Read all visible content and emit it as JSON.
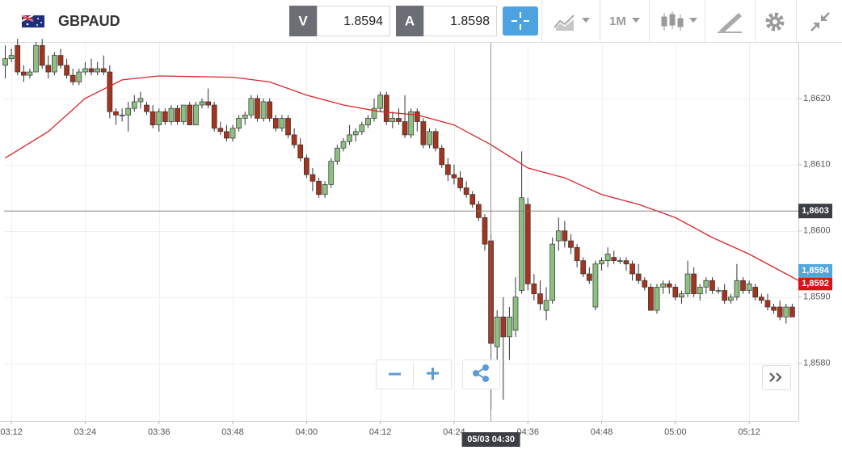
{
  "header": {
    "symbol": "GBPAUD",
    "bid_label": "V",
    "bid": 1.8594,
    "ask_label": "A",
    "ask": 1.8598,
    "timeframe": "1M"
  },
  "chart_data": {
    "type": "candlestick",
    "x": [
      191,
      192,
      193,
      194,
      195,
      196,
      197,
      198,
      199,
      200,
      201,
      202,
      203,
      204,
      205,
      206,
      207,
      208,
      209,
      210,
      211,
      212,
      213,
      214,
      215,
      216,
      217,
      218,
      219,
      220,
      221,
      222,
      223,
      224,
      225,
      226,
      227,
      228,
      229,
      230,
      231,
      232,
      233,
      234,
      235,
      236,
      237,
      238,
      239,
      240,
      241,
      242,
      243,
      244,
      245,
      246,
      247,
      248,
      249,
      250,
      251,
      252,
      253,
      254,
      255,
      256,
      257,
      258,
      259,
      260,
      261,
      262,
      263,
      264,
      265,
      266,
      267,
      268,
      269,
      270,
      271,
      272,
      273,
      274,
      275,
      276,
      277,
      278,
      279,
      280,
      281,
      282,
      283,
      284,
      285,
      286,
      287,
      288,
      289,
      290,
      291,
      292,
      293,
      294,
      295,
      296,
      297,
      298,
      299,
      300,
      301,
      302,
      303,
      304,
      305,
      306,
      307,
      308,
      309,
      310,
      311,
      312,
      313,
      314,
      315,
      316,
      317,
      318,
      319
    ],
    "open": [
      1.8625,
      1.8626,
      1.8628,
      1.8624,
      1.86235,
      1.8624,
      1.8628,
      1.8625,
      1.8624,
      1.86265,
      1.8625,
      1.86235,
      1.86225,
      1.8624,
      1.86245,
      1.8624,
      1.86245,
      1.8624,
      1.8618,
      1.86175,
      1.86175,
      1.86185,
      1.86195,
      1.8619,
      1.8618,
      1.8616,
      1.8618,
      1.86165,
      1.86185,
      1.86165,
      1.8619,
      1.8616,
      1.8619,
      1.86195,
      1.8619,
      1.86155,
      1.8615,
      1.8614,
      1.86155,
      1.8617,
      1.86175,
      1.862,
      1.8617,
      1.86195,
      1.8617,
      1.86155,
      1.8617,
      1.86145,
      1.8613,
      1.8611,
      1.86085,
      1.86075,
      1.86055,
      1.8607,
      1.86105,
      1.86125,
      1.86135,
      1.86145,
      1.8615,
      1.8616,
      1.8617,
      1.86185,
      1.86205,
      1.86165,
      1.8617,
      1.86165,
      1.86145,
      1.8618,
      1.86165,
      1.8613,
      1.8615,
      1.86125,
      1.861,
      1.86085,
      1.8608,
      1.86065,
      1.86055,
      1.8604,
      1.8602,
      1.85985,
      1.85825,
      1.8587,
      1.8584,
      1.8585,
      1.8591,
      1.8604,
      1.8592,
      1.85905,
      1.8588,
      1.85895,
      1.85985,
      1.86,
      1.85985,
      1.85975,
      1.85955,
      1.85935,
      1.85885,
      1.8595,
      1.85955,
      1.8596,
      1.85955,
      1.85955,
      1.8595,
      1.85935,
      1.85925,
      1.85915,
      1.8588,
      1.85915,
      1.8592,
      1.85915,
      1.859,
      1.85905,
      1.85935,
      1.85905,
      1.85915,
      1.85925,
      1.8591,
      1.8591,
      1.85895,
      1.859,
      1.85925,
      1.8591,
      1.85915,
      1.859,
      1.85895,
      1.85885,
      1.85885,
      1.8587,
      1.85885
    ],
    "high": [
      1.8628,
      1.86275,
      1.8629,
      1.8625,
      1.86245,
      1.86285,
      1.8629,
      1.86265,
      1.8627,
      1.86275,
      1.8626,
      1.86245,
      1.86245,
      1.86255,
      1.8626,
      1.86255,
      1.86265,
      1.8625,
      1.86185,
      1.86185,
      1.86195,
      1.86205,
      1.8621,
      1.86195,
      1.8619,
      1.86185,
      1.86185,
      1.8619,
      1.8619,
      1.8619,
      1.86195,
      1.86195,
      1.862,
      1.86215,
      1.86195,
      1.86165,
      1.8616,
      1.8616,
      1.86175,
      1.8618,
      1.86205,
      1.86205,
      1.862,
      1.862,
      1.86175,
      1.86175,
      1.86175,
      1.86155,
      1.8614,
      1.86115,
      1.86095,
      1.8608,
      1.86075,
      1.8611,
      1.8613,
      1.8614,
      1.8616,
      1.86155,
      1.86165,
      1.86175,
      1.862,
      1.8621,
      1.8621,
      1.8618,
      1.86185,
      1.86205,
      1.86185,
      1.86185,
      1.8617,
      1.86155,
      1.86155,
      1.8613,
      1.8611,
      1.861,
      1.8609,
      1.86075,
      1.8606,
      1.86045,
      1.86025,
      1.85995,
      1.8588,
      1.859,
      1.85885,
      1.8593,
      1.8612,
      1.8605,
      1.85935,
      1.85925,
      1.85915,
      1.8599,
      1.8602,
      1.86015,
      1.85995,
      1.8598,
      1.8596,
      1.85945,
      1.85955,
      1.8596,
      1.85975,
      1.8597,
      1.8596,
      1.8596,
      1.85955,
      1.8595,
      1.8593,
      1.8592,
      1.8592,
      1.85925,
      1.85925,
      1.8592,
      1.8591,
      1.85955,
      1.85945,
      1.8592,
      1.8593,
      1.8593,
      1.85915,
      1.8592,
      1.85905,
      1.8595,
      1.8593,
      1.85925,
      1.8592,
      1.85905,
      1.85905,
      1.8589,
      1.85895,
      1.8589,
      1.8589
    ],
    "low": [
      1.8623,
      1.86255,
      1.86235,
      1.86225,
      1.8623,
      1.8624,
      1.86245,
      1.8623,
      1.86235,
      1.86245,
      1.8623,
      1.8622,
      1.8622,
      1.86235,
      1.86235,
      1.86235,
      1.86235,
      1.8617,
      1.8616,
      1.86165,
      1.8615,
      1.8618,
      1.86185,
      1.86175,
      1.86155,
      1.8615,
      1.8616,
      1.8616,
      1.8616,
      1.8616,
      1.8616,
      1.8616,
      1.86185,
      1.86185,
      1.8615,
      1.86145,
      1.86135,
      1.86135,
      1.8615,
      1.8616,
      1.8617,
      1.86165,
      1.86165,
      1.86165,
      1.8615,
      1.8615,
      1.8614,
      1.86125,
      1.86105,
      1.8608,
      1.8606,
      1.8605,
      1.8605,
      1.86065,
      1.861,
      1.8612,
      1.8613,
      1.86135,
      1.86145,
      1.86155,
      1.86165,
      1.8618,
      1.8616,
      1.86155,
      1.8616,
      1.8614,
      1.8614,
      1.8615,
      1.86125,
      1.86125,
      1.8612,
      1.86095,
      1.86075,
      1.8607,
      1.8606,
      1.8605,
      1.86035,
      1.86015,
      1.8597,
      1.8573,
      1.8579,
      1.85745,
      1.85805,
      1.8584,
      1.85905,
      1.8591,
      1.85895,
      1.8588,
      1.85865,
      1.8589,
      1.8597,
      1.85975,
      1.85965,
      1.85945,
      1.8593,
      1.8592,
      1.8588,
      1.8594,
      1.85945,
      1.8595,
      1.8595,
      1.8594,
      1.85925,
      1.8592,
      1.8591,
      1.8588,
      1.85875,
      1.85905,
      1.85905,
      1.85895,
      1.8589,
      1.859,
      1.859,
      1.85895,
      1.85905,
      1.85905,
      1.85905,
      1.8589,
      1.8589,
      1.85895,
      1.85905,
      1.85905,
      1.85895,
      1.8589,
      1.8588,
      1.85875,
      1.85865,
      1.8586,
      1.8587
    ],
    "close": [
      1.8626,
      1.86265,
      1.8624,
      1.86235,
      1.8624,
      1.8628,
      1.8625,
      1.8624,
      1.86265,
      1.8625,
      1.86235,
      1.86225,
      1.8624,
      1.86245,
      1.8624,
      1.86245,
      1.8624,
      1.8618,
      1.86175,
      1.86175,
      1.86185,
      1.86195,
      1.862,
      1.8618,
      1.8616,
      1.8618,
      1.86165,
      1.86185,
      1.86165,
      1.8619,
      1.8616,
      1.8619,
      1.86195,
      1.8619,
      1.86155,
      1.8615,
      1.8614,
      1.86155,
      1.8617,
      1.86175,
      1.862,
      1.8617,
      1.86195,
      1.8617,
      1.86155,
      1.8617,
      1.86145,
      1.8613,
      1.8611,
      1.86085,
      1.86075,
      1.86055,
      1.8607,
      1.86105,
      1.86125,
      1.86135,
      1.86145,
      1.8615,
      1.8616,
      1.8617,
      1.86185,
      1.86205,
      1.86165,
      1.8617,
      1.86165,
      1.86145,
      1.8618,
      1.86165,
      1.8613,
      1.8615,
      1.86125,
      1.861,
      1.86085,
      1.8608,
      1.86065,
      1.86055,
      1.8604,
      1.8602,
      1.8598,
      1.8583,
      1.8587,
      1.8584,
      1.8587,
      1.859,
      1.8605,
      1.8592,
      1.85905,
      1.8589,
      1.85895,
      1.8598,
      1.86,
      1.85985,
      1.85975,
      1.85955,
      1.85935,
      1.85925,
      1.8595,
      1.85955,
      1.85965,
      1.85955,
      1.85955,
      1.8595,
      1.85935,
      1.85925,
      1.85915,
      1.8588,
      1.85915,
      1.8592,
      1.85915,
      1.859,
      1.85905,
      1.85935,
      1.85905,
      1.85915,
      1.85925,
      1.8591,
      1.8591,
      1.85895,
      1.859,
      1.85925,
      1.8591,
      1.8592,
      1.859,
      1.85895,
      1.85885,
      1.8588,
      1.8587,
      1.85885,
      1.8587
    ],
    "up_color": "#8dbf80",
    "down_color": "#a3341e",
    "ma": {
      "color": "#d9262b",
      "x": [
        191,
        198,
        204,
        210,
        216,
        222,
        228,
        234,
        240,
        246,
        252,
        258,
        264,
        270,
        276,
        282,
        288,
        294,
        300,
        306,
        312,
        318,
        320
      ],
      "values": [
        1.8611,
        1.8615,
        1.862,
        1.86228,
        1.86234,
        1.86233,
        1.86232,
        1.86225,
        1.86205,
        1.8619,
        1.8618,
        1.86175,
        1.8616,
        1.8613,
        1.86095,
        1.8608,
        1.86055,
        1.8604,
        1.8602,
        1.8599,
        1.85965,
        1.85935,
        1.85925
      ]
    },
    "xlim": [
      190.8,
      320
    ],
    "xticks": [
      {
        "value": 192,
        "label": "03:12"
      },
      {
        "value": 204,
        "label": "03:24"
      },
      {
        "value": 216,
        "label": "03:36"
      },
      {
        "value": 228,
        "label": "03:48"
      },
      {
        "value": 240,
        "label": "04:00"
      },
      {
        "value": 252,
        "label": "04:12"
      },
      {
        "value": 264,
        "label": "04:24"
      },
      {
        "value": 276,
        "label": "04:36"
      },
      {
        "value": 288,
        "label": "04:48"
      },
      {
        "value": 300,
        "label": "05:00"
      },
      {
        "value": 312,
        "label": "05:12"
      }
    ],
    "ylim": [
      1.85713,
      1.86284
    ],
    "yticks": [
      {
        "value": 1.858,
        "label": "1,8580"
      },
      {
        "value": 1.859,
        "label": "1,8590"
      },
      {
        "value": 1.86,
        "label": "1,8600"
      },
      {
        "value": 1.861,
        "label": "1,8610"
      },
      {
        "value": 1.862,
        "label": "1,8620"
      }
    ],
    "grid": true,
    "crosshair": {
      "x": 270,
      "x_label": "05/03 04:30",
      "y": {
        "value": 1.8603,
        "label": "1,8603"
      }
    },
    "price_labels": [
      {
        "value": 1.8594,
        "label": "1,8594",
        "color": "#4fa6dc"
      },
      {
        "value": 1.8592,
        "label": "1,8592",
        "color": "#e0101a"
      }
    ]
  }
}
